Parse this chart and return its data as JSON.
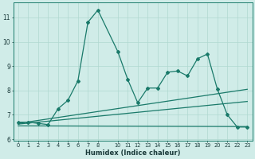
{
  "title": "",
  "xlabel": "Humidex (Indice chaleur)",
  "background_color": "#d0ece8",
  "line_color": "#1a7a6a",
  "grid_color": "#b0d8d0",
  "main_line_x": [
    0,
    1,
    2,
    3,
    4,
    5,
    6,
    7,
    8,
    10,
    11,
    12,
    13,
    14,
    15,
    16,
    17,
    18,
    19,
    20,
    21,
    22,
    23
  ],
  "main_line_y": [
    6.7,
    6.7,
    6.65,
    6.6,
    7.25,
    7.6,
    8.4,
    10.8,
    11.3,
    9.6,
    8.45,
    7.5,
    8.1,
    8.1,
    8.75,
    8.8,
    8.6,
    9.3,
    9.5,
    8.05,
    7.0,
    6.5,
    6.5
  ],
  "trend1_x": [
    0,
    23
  ],
  "trend1_y": [
    6.65,
    8.05
  ],
  "trend2_x": [
    0,
    23
  ],
  "trend2_y": [
    6.62,
    7.55
  ],
  "trend3_x": [
    0,
    23
  ],
  "trend3_y": [
    6.55,
    6.52
  ],
  "x_tick_positions": [
    0,
    1,
    2,
    3,
    4,
    5,
    6,
    7,
    8,
    10,
    11,
    12,
    13,
    14,
    15,
    16,
    17,
    18,
    19,
    20,
    21,
    22,
    23
  ],
  "y_tick_positions": [
    6,
    7,
    8,
    9,
    10,
    11
  ],
  "xlim": [
    -0.5,
    23.5
  ],
  "ylim": [
    5.95,
    11.6
  ]
}
